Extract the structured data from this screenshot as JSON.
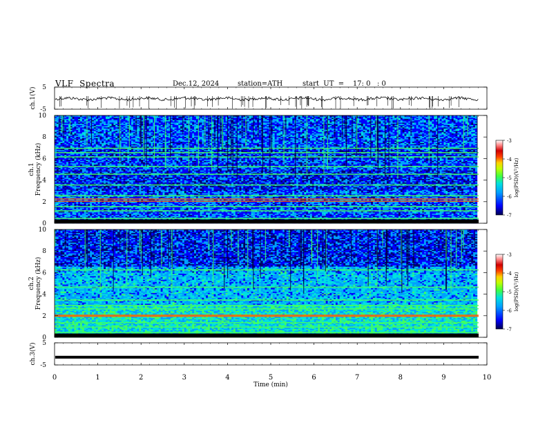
{
  "header": {
    "title": "VLF  Spectra",
    "date": "Dec.12, 2024",
    "station": "station=ATH",
    "start": "start  UT  =    17: 0   : 0"
  },
  "colors": {
    "spectrogram_scale": [
      "#000070",
      "#0000ff",
      "#00a0ff",
      "#00e0e0",
      "#40ff60",
      "#c0ff00",
      "#ffd000",
      "#ff6000",
      "#e00000",
      "#ff8080",
      "#ffffff"
    ]
  },
  "chart_data": [
    {
      "type": "line",
      "ylabel": "ch.1(V)",
      "ylim": [
        -5,
        5
      ],
      "yticks": [
        "5",
        "-5"
      ],
      "xlim": [
        0,
        10
      ],
      "description_level": -0.3
    },
    {
      "type": "heatmap",
      "ylabel": "ch.1",
      "ylabel2": "Frequency  (kHz)",
      "ylim": [
        0,
        10
      ],
      "yticks": [
        "10",
        "8",
        "6",
        "4",
        "2",
        "0"
      ],
      "xlim": [
        0,
        10
      ],
      "colorbar": {
        "label": "log(PSD)(V²/Hz)",
        "range": [
          -7,
          -3
        ],
        "ticks": [
          "-3",
          "-4",
          "-5",
          "-6",
          "-7"
        ]
      },
      "bands_khz": [
        0.5,
        1.2,
        1.6,
        2.1,
        2.3,
        2.6,
        3.6,
        4.6,
        5.3,
        6.2,
        6.6,
        7.0
      ]
    },
    {
      "type": "heatmap",
      "ylabel": "ch.2",
      "ylabel2": "Frequency  (kHz)",
      "ylim": [
        0,
        10
      ],
      "yticks": [
        "10",
        "8",
        "6",
        "4",
        "2",
        "0"
      ],
      "xlim": [
        0,
        10
      ],
      "colorbar": {
        "label": "log(PSD)(V²/Hz)",
        "range": [
          -7,
          -3
        ],
        "ticks": [
          "-3",
          "-4",
          "-5",
          "-6",
          "-7"
        ]
      },
      "bands_khz": [
        0.5,
        1.0,
        1.4,
        2.0,
        2.1,
        2.7,
        3.0,
        3.5,
        4.7,
        6.3
      ]
    },
    {
      "type": "line",
      "ylabel": "ch.3(V)",
      "ylim": [
        -5,
        5
      ],
      "yticks": [
        "5",
        "-5"
      ],
      "xlim": [
        0,
        10
      ],
      "xlabel": "Time  (min)",
      "xticks": [
        "0",
        "1",
        "2",
        "3",
        "4",
        "5",
        "6",
        "7",
        "8",
        "9",
        "10"
      ],
      "level": -1.5
    }
  ]
}
